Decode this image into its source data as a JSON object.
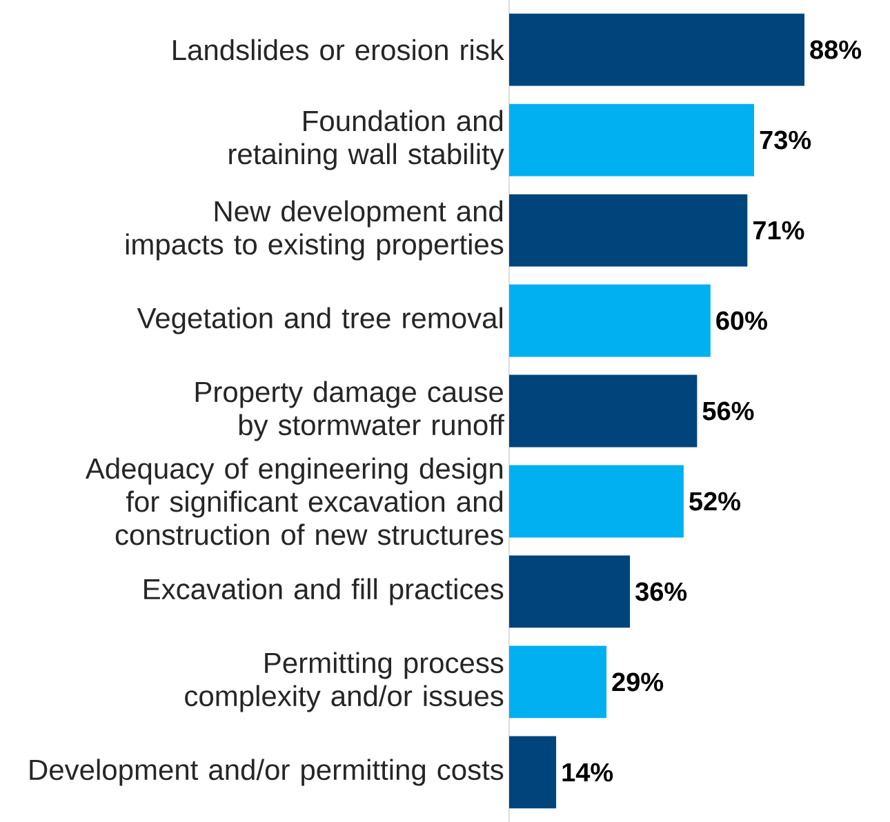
{
  "chart_data": {
    "type": "bar",
    "orientation": "horizontal",
    "categories": [
      "Landslides or erosion risk",
      "Foundation and retaining wall stability",
      "New development and impacts to existing properties",
      "Vegetation and tree removal",
      "Property damage cause by stormwater runoff",
      "Adequacy of engineering design for significant excavation and construction of new structures",
      "Excavation and fill practices",
      "Permitting process complexity and/or issues",
      "Development and/or permitting costs"
    ],
    "values": [
      88,
      73,
      71,
      60,
      56,
      52,
      36,
      29,
      14
    ],
    "value_labels": [
      "88%",
      "73%",
      "71%",
      "60%",
      "56%",
      "52%",
      "36%",
      "29%",
      "14%"
    ],
    "colors": [
      "#00447c",
      "#00b0f0",
      "#00447c",
      "#00b0f0",
      "#00447c",
      "#00b0f0",
      "#00447c",
      "#00b0f0",
      "#00447c"
    ]
  }
}
